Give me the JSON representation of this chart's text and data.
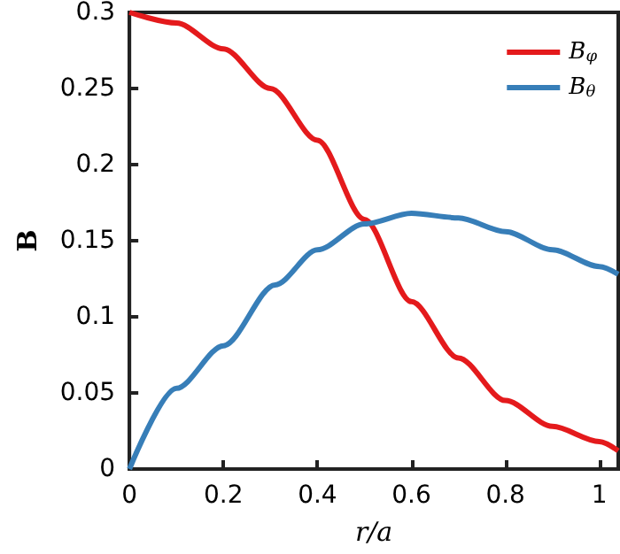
{
  "chart_data": {
    "type": "line",
    "xlabel": "r/a",
    "ylabel": "B",
    "xlim": [
      0,
      1.04
    ],
    "xticks": [
      0,
      0.2,
      0.4,
      0.6,
      0.8,
      1
    ],
    "ylim": [
      0,
      0.3
    ],
    "yticks": [
      0,
      0.05,
      0.1,
      0.15,
      0.2,
      0.25,
      0.3
    ],
    "grid": false,
    "legend": "top right",
    "marker": "none",
    "line_style": "solid",
    "series": [
      {
        "name": "B$_{φ}$",
        "color": "#e41a1c",
        "x": [
          0,
          0.1,
          0.2,
          0.3,
          0.4,
          0.5,
          0.6,
          0.7,
          0.8,
          0.9,
          1.0,
          1.04
        ],
        "values": [
          0.3,
          0.293,
          0.276,
          0.25,
          0.216,
          0.164,
          0.11,
          0.073,
          0.045,
          0.028,
          0.018,
          0.012
        ]
      },
      {
        "name": "B$_{θ}$",
        "color": "#377eb8",
        "x": [
          0,
          0.1,
          0.2,
          0.31,
          0.4,
          0.5,
          0.6,
          0.7,
          0.8,
          0.9,
          1.0,
          1.04
        ],
        "values": [
          0,
          0.053,
          0.081,
          0.121,
          0.144,
          0.161,
          0.168,
          0.165,
          0.156,
          0.144,
          0.133,
          0.128
        ]
      }
    ]
  }
}
